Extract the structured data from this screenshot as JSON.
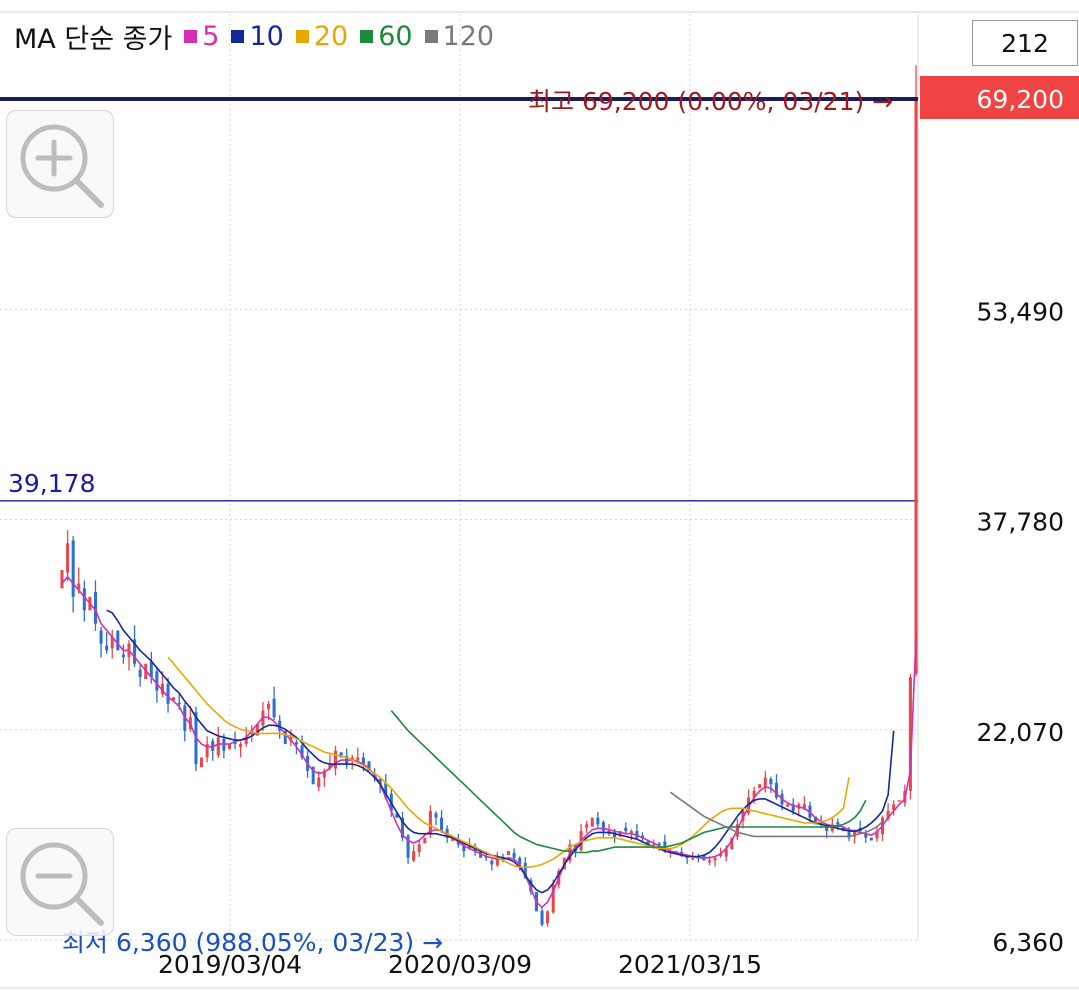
{
  "legend": {
    "title": "MA 단순 종가",
    "items": [
      {
        "label": "5",
        "color": "#d62fb4"
      },
      {
        "label": "10",
        "color": "#13289a"
      },
      {
        "label": "20",
        "color": "#e9a800"
      },
      {
        "label": "60",
        "color": "#1b8a3a"
      },
      {
        "label": "120",
        "color": "#7a7a7a"
      }
    ]
  },
  "period_value": "212",
  "zoom": {
    "in_icon": "zoom-in-icon",
    "out_icon": "zoom-out-icon"
  },
  "chart_data": {
    "type": "candlestick",
    "y_ticks": [
      "69,200",
      "53,490",
      "37,780",
      "22,070",
      "6,360"
    ],
    "x_ticks": [
      "2019/03/04",
      "2020/03/09",
      "2021/03/15"
    ],
    "ylim": [
      6360,
      69200
    ],
    "current_price": {
      "label": "69,200",
      "color": "#f04444"
    },
    "reference_line": {
      "label": "39,178",
      "value": 39178,
      "color": "#1a1aa8"
    },
    "high_annotation": {
      "text": "최고 69,200 (0.00%, 03/21) →",
      "color": "#a01820"
    },
    "low_annotation": {
      "text": "최저 6,360 (988.05%, 03/23) →",
      "color": "#1a4fc8"
    },
    "up_color": "#e8474c",
    "down_color": "#2c6fd4",
    "closes": [
      34000,
      36000,
      32000,
      33000,
      31000,
      32000,
      30000,
      28500,
      28000,
      29000,
      28000,
      27500,
      28500,
      27000,
      26000,
      27000,
      26000,
      25000,
      25500,
      24000,
      24500,
      24000,
      22000,
      23000,
      19500,
      20000,
      21000,
      20500,
      21500,
      20500,
      21000,
      21000,
      21000,
      21500,
      22000,
      22500,
      23500,
      24000,
      23000,
      22000,
      21000,
      21500,
      21000,
      20000,
      19000,
      18000,
      18500,
      19000,
      19500,
      20500,
      20000,
      19500,
      20000,
      20000,
      19500,
      19000,
      18500,
      18000,
      17000,
      16000,
      15500,
      14000,
      12500,
      13000,
      13500,
      14000,
      16000,
      15500,
      14500,
      14000,
      14000,
      13500,
      13000,
      13500,
      13000,
      12500,
      12500,
      12000,
      12500,
      12500,
      13000,
      12500,
      12000,
      11000,
      10000,
      8500,
      7500,
      8500,
      10500,
      11500,
      12500,
      13500,
      13000,
      14500,
      15000,
      15500,
      15000,
      14500,
      14500,
      14000,
      14500,
      14500,
      14500,
      14000,
      14000,
      13500,
      13500,
      13500,
      13000,
      13000,
      12800,
      12800,
      12500,
      12500,
      12500,
      12300,
      12300,
      12500,
      12800,
      13200,
      14000,
      15000,
      16000,
      17000,
      17500,
      18000,
      18500,
      18000,
      17000,
      16500,
      16500,
      16000,
      16500,
      16500,
      15500,
      15000,
      15000,
      14500,
      15000,
      15000,
      14500,
      14000,
      14500,
      14500,
      14000,
      13800,
      14500,
      15500,
      16000,
      16500,
      16800,
      17500,
      26000,
      69200
    ],
    "ma5": [
      33000,
      33500,
      33000,
      32500,
      32000,
      31500,
      31000,
      30000,
      29500,
      29000,
      28500,
      28000,
      28000,
      27500,
      27000,
      26500,
      26000,
      25500,
      25000,
      24500,
      24200,
      23800,
      23000,
      22500,
      21500,
      21000,
      20800,
      20800,
      21000,
      21000,
      21000,
      21200,
      21300,
      21500,
      22000,
      22500,
      23000,
      23000,
      22700,
      22200,
      21800,
      21300,
      20800,
      20200,
      19500,
      19000,
      18800,
      18900,
      19200,
      19600,
      19800,
      19800,
      19800,
      19700,
      19500,
      19200,
      18700,
      18000,
      17000,
      16000,
      15000,
      14200,
      13800,
      13600,
      13800,
      14200,
      14500,
      14600,
      14500,
      14200,
      14000,
      13700,
      13400,
      13200,
      13000,
      12800,
      12600,
      12500,
      12400,
      12400,
      12500,
      12400,
      12000,
      11200,
      10200,
      9200,
      8800,
      9200,
      10000,
      11000,
      12000,
      12800,
      13300,
      13800,
      14200,
      14600,
      14700,
      14700,
      14600,
      14500,
      14400,
      14300,
      14300,
      14200,
      14000,
      13800,
      13600,
      13400,
      13200,
      13000,
      12900,
      12800,
      12700,
      12600,
      12500,
      12500,
      12500,
      12600,
      12800,
      13200,
      13800,
      14600,
      15500,
      16300,
      17000,
      17500,
      17800,
      17700,
      17300,
      16900,
      16600,
      16400,
      16300,
      16200,
      15900,
      15500,
      15200,
      15000,
      14900,
      14900,
      14800,
      14600,
      14500,
      14400,
      14300,
      14200,
      14400,
      14900,
      15500,
      16000,
      16500,
      16900,
      19000,
      29000
    ],
    "ma10": [
      null,
      null,
      null,
      null,
      null,
      null,
      null,
      null,
      31000,
      30800,
      30200,
      29500,
      29000,
      28500,
      28000,
      27600,
      27200,
      26700,
      26200,
      25700,
      25200,
      24800,
      24200,
      23700,
      23000,
      22500,
      22000,
      21800,
      21600,
      21500,
      21400,
      21300,
      21300,
      21400,
      21600,
      21900,
      22200,
      22400,
      22400,
      22300,
      22100,
      21800,
      21500,
      21100,
      20600,
      20200,
      19800,
      19600,
      19500,
      19500,
      19500,
      19500,
      19500,
      19400,
      19200,
      18900,
      18500,
      18000,
      17300,
      16600,
      15900,
      15200,
      14700,
      14400,
      14300,
      14300,
      14300,
      14300,
      14200,
      14100,
      14000,
      13800,
      13600,
      13400,
      13200,
      13000,
      12800,
      12700,
      12600,
      12500,
      12400,
      12200,
      11800,
      11200,
      10600,
      10100,
      9900,
      10100,
      10600,
      11300,
      12000,
      12600,
      13100,
      13600,
      14000,
      14300,
      14400,
      14400,
      14400,
      14300,
      14200,
      14100,
      14000,
      13900,
      13700,
      13500,
      13300,
      13200,
      13000,
      12900,
      12800,
      12700,
      12600,
      12600,
      12600,
      12700,
      12900,
      13300,
      13800,
      14400,
      15000,
      15600,
      16100,
      16500,
      16800,
      16900,
      16900,
      16700,
      16500,
      16300,
      16100,
      15900,
      15700,
      15500,
      15300,
      15100,
      15000,
      14900,
      14800,
      14700,
      14600,
      14500,
      14500,
      14600,
      14800,
      15100,
      15500,
      16000,
      17200,
      22000
    ],
    "ma20": [
      null,
      null,
      null,
      null,
      null,
      null,
      null,
      null,
      null,
      null,
      null,
      null,
      null,
      null,
      null,
      null,
      null,
      null,
      null,
      27500,
      27000,
      26500,
      26000,
      25500,
      25000,
      24500,
      24000,
      23600,
      23200,
      22800,
      22500,
      22300,
      22100,
      22000,
      21900,
      21800,
      21800,
      21800,
      21800,
      21800,
      21700,
      21600,
      21400,
      21200,
      21000,
      20800,
      20600,
      20400,
      20300,
      20200,
      20100,
      20000,
      19800,
      19600,
      19400,
      19100,
      18800,
      18500,
      18100,
      17700,
      17200,
      16700,
      16200,
      15800,
      15400,
      15100,
      14900,
      14700,
      14500,
      14300,
      14100,
      13900,
      13700,
      13500,
      13300,
      13100,
      12900,
      12700,
      12500,
      12300,
      12100,
      11900,
      11800,
      11800,
      11800,
      11900,
      12000,
      12200,
      12400,
      12700,
      13000,
      13300,
      13500,
      13700,
      13800,
      13900,
      14000,
      14000,
      14000,
      14000,
      13900,
      13800,
      13700,
      13600,
      13500,
      13400,
      13300,
      13200,
      13200,
      13200,
      13300,
      13500,
      13800,
      14100,
      14500,
      14900,
      15300,
      15600,
      15900,
      16100,
      16200,
      16200,
      16200,
      16100,
      16000,
      15900,
      15800,
      15700,
      15600,
      15500,
      15400,
      15300,
      15200,
      15100,
      15100,
      15100,
      15200,
      15300,
      15500,
      15800,
      16200,
      18500
    ],
    "ma60": [
      null,
      null,
      null,
      null,
      null,
      null,
      null,
      null,
      null,
      null,
      null,
      null,
      null,
      null,
      null,
      null,
      null,
      null,
      null,
      null,
      null,
      null,
      null,
      null,
      null,
      null,
      null,
      null,
      null,
      null,
      null,
      null,
      null,
      null,
      null,
      null,
      null,
      null,
      null,
      null,
      null,
      null,
      null,
      null,
      null,
      null,
      null,
      null,
      null,
      null,
      null,
      null,
      null,
      null,
      null,
      null,
      null,
      null,
      null,
      23500,
      23000,
      22500,
      22000,
      21600,
      21200,
      20800,
      20400,
      20000,
      19600,
      19200,
      18800,
      18400,
      18000,
      17600,
      17200,
      16800,
      16400,
      16000,
      15600,
      15200,
      14800,
      14400,
      14100,
      13900,
      13700,
      13500,
      13400,
      13300,
      13200,
      13100,
      13000,
      13000,
      12900,
      12900,
      12900,
      13000,
      13000,
      13100,
      13200,
      13300,
      13300,
      13300,
      13300,
      13300,
      13300,
      13300,
      13300,
      13300,
      13300,
      13400,
      13500,
      13600,
      13800,
      14000,
      14200,
      14400,
      14500,
      14600,
      14700,
      14800,
      14800,
      14800,
      14800,
      14800,
      14800,
      14800,
      14800,
      14800,
      14800,
      14800,
      14800,
      14800,
      14800,
      14800,
      14800,
      14800,
      14800,
      14800,
      14800,
      14900,
      15000,
      15200,
      15500,
      16000,
      16800
    ],
    "ma120": [
      null,
      null,
      null,
      null,
      null,
      null,
      null,
      null,
      null,
      null,
      null,
      null,
      null,
      null,
      null,
      null,
      null,
      null,
      null,
      null,
      null,
      null,
      null,
      null,
      null,
      null,
      null,
      null,
      null,
      null,
      null,
      null,
      null,
      null,
      null,
      null,
      null,
      null,
      null,
      null,
      null,
      null,
      null,
      null,
      null,
      null,
      null,
      null,
      null,
      null,
      null,
      null,
      null,
      null,
      null,
      null,
      null,
      null,
      null,
      null,
      null,
      null,
      null,
      null,
      null,
      null,
      null,
      null,
      null,
      null,
      null,
      null,
      null,
      null,
      null,
      null,
      null,
      null,
      null,
      null,
      null,
      null,
      null,
      null,
      null,
      null,
      null,
      null,
      null,
      null,
      null,
      null,
      null,
      null,
      null,
      null,
      null,
      null,
      null,
      null,
      null,
      null,
      null,
      null,
      null,
      null,
      null,
      null,
      null,
      17400,
      17100,
      16800,
      16500,
      16200,
      15900,
      15600,
      15400,
      15200,
      15000,
      14800,
      14600,
      14400,
      14300,
      14200,
      14100,
      14100,
      14100,
      14100,
      14100,
      14100,
      14100,
      14100,
      14100,
      14100,
      14100,
      14100,
      14100,
      14100,
      14100,
      14100,
      14100,
      14100,
      14200,
      14300,
      14400,
      14600,
      14800,
      15200
    ]
  }
}
